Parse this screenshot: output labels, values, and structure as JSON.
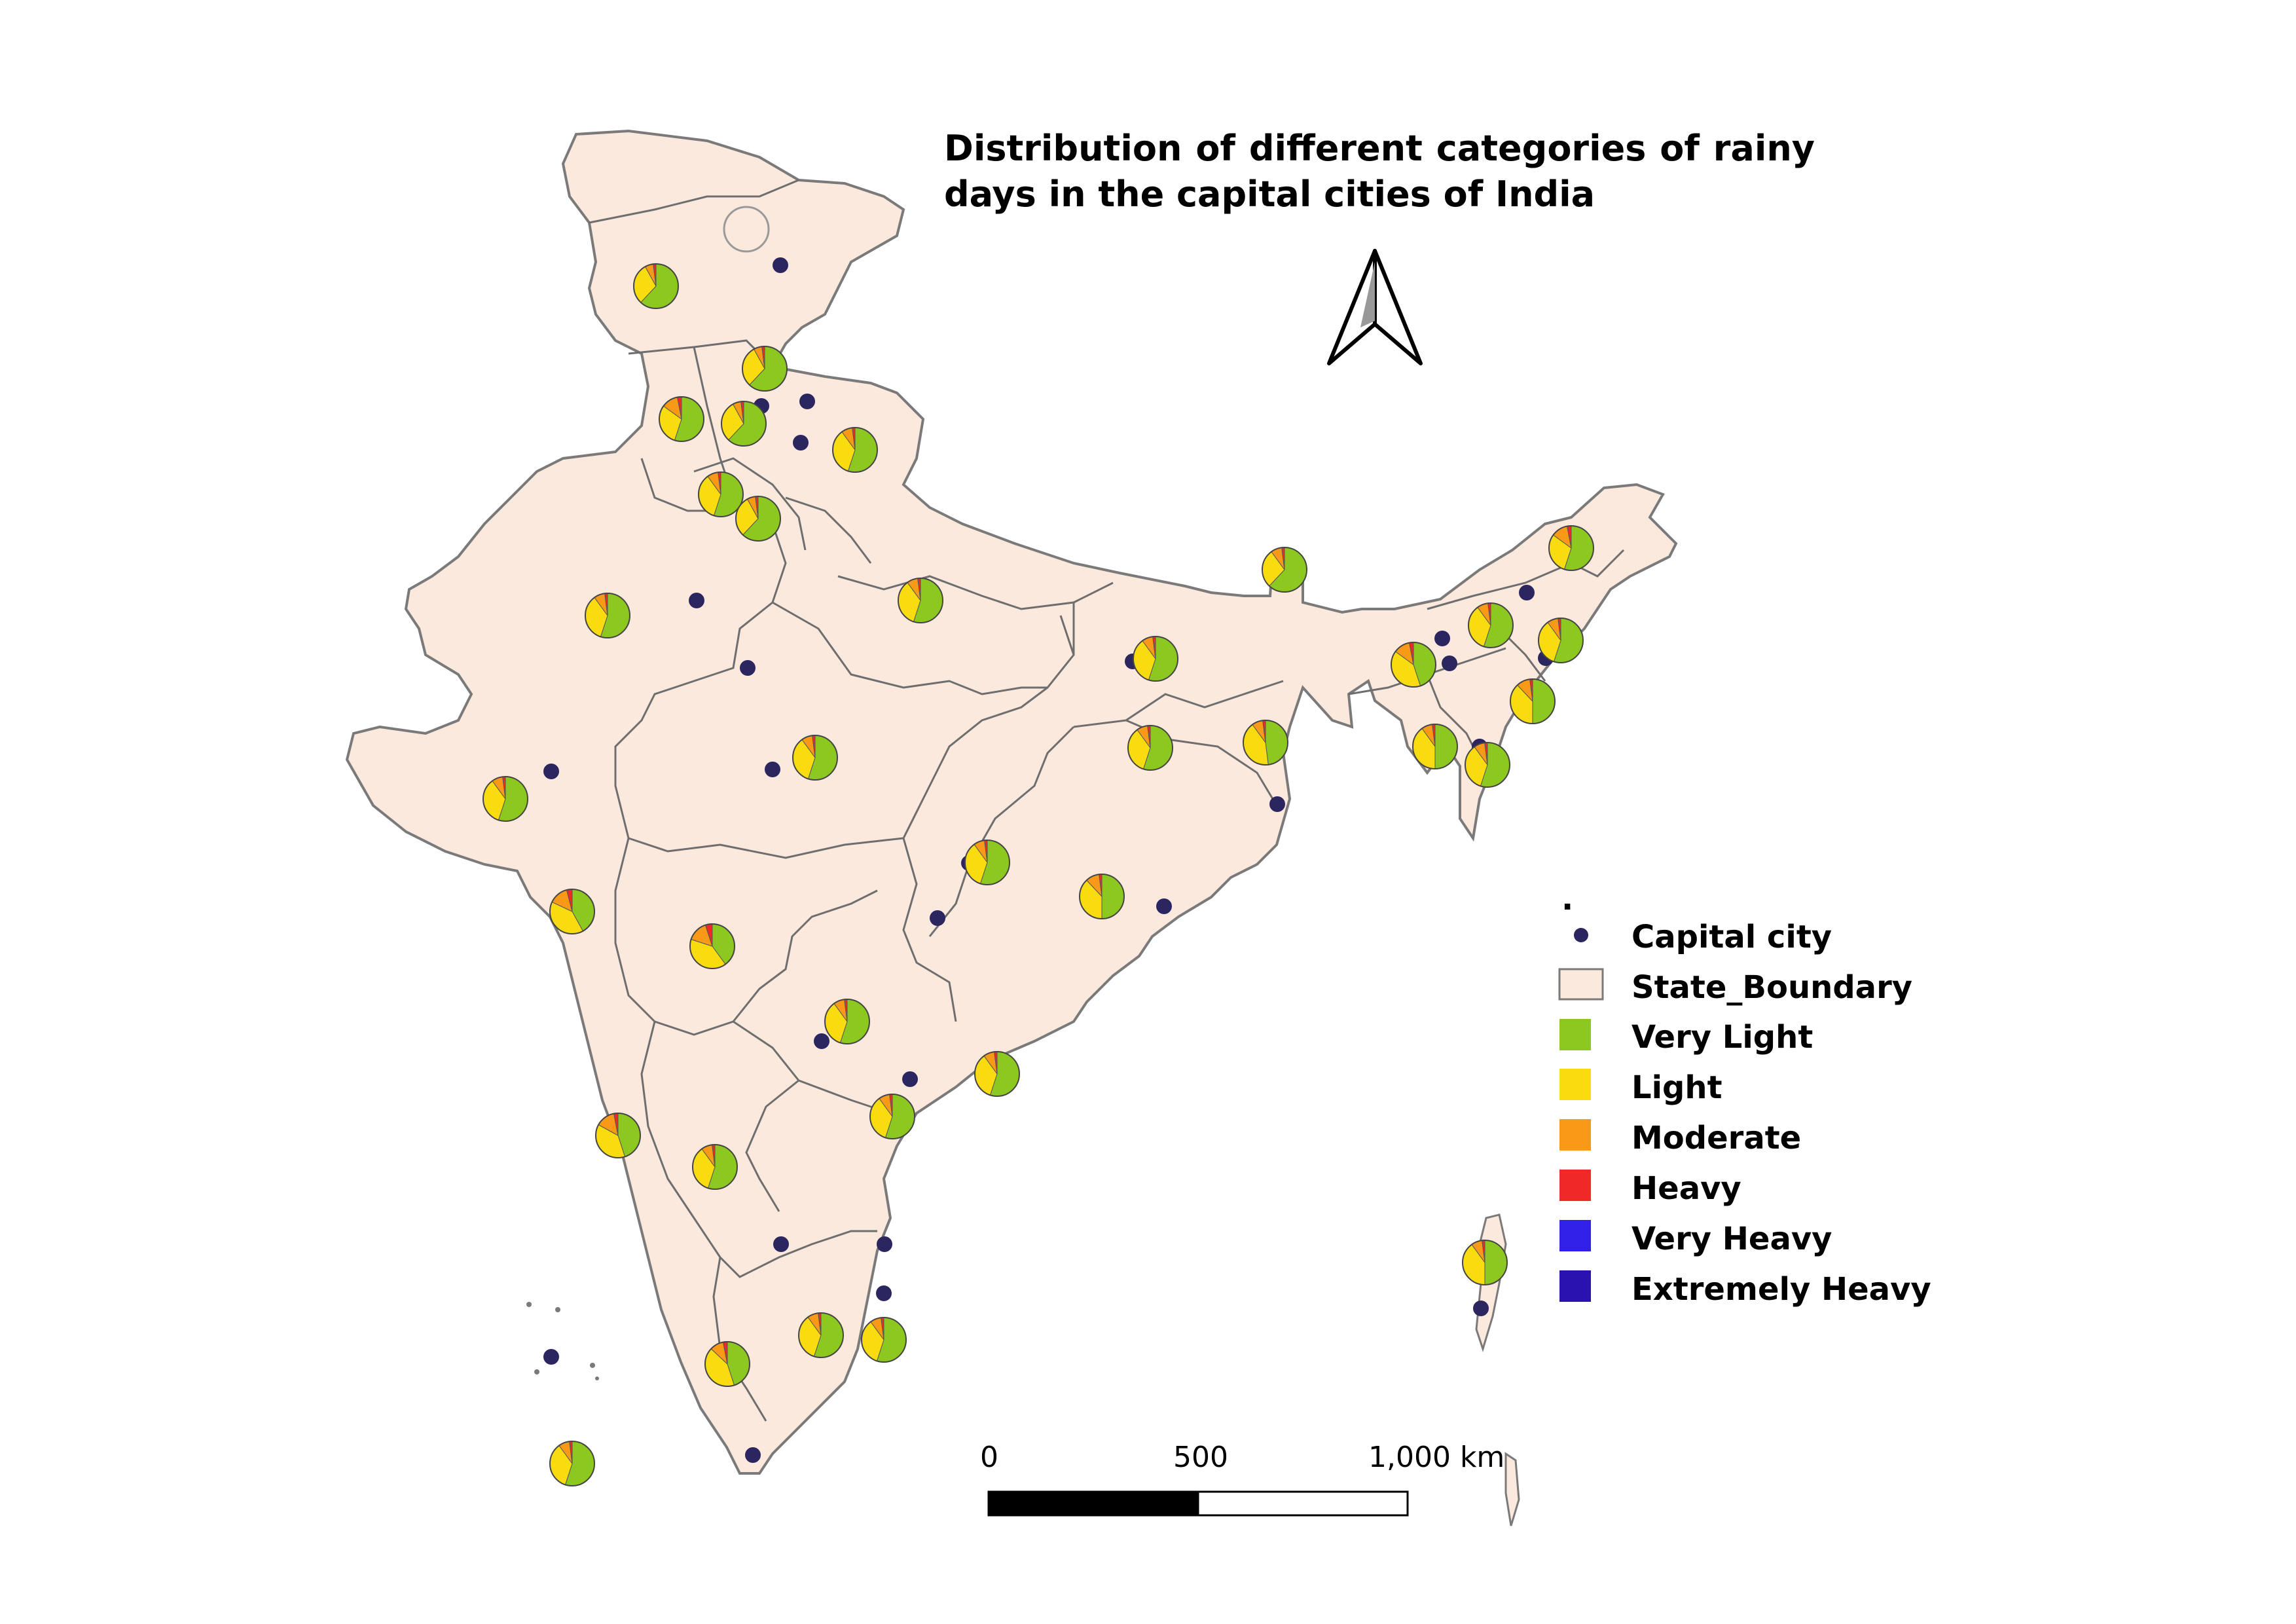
{
  "title": "Distribution of different categories of rainy days in the capital cities of India",
  "legend": {
    "heading": ".",
    "items": [
      {
        "label": "Capital city",
        "symbol": "point",
        "color": "#2b2560"
      },
      {
        "label": "State_Boundary",
        "symbol": "polygon",
        "color": "#fce9de"
      },
      {
        "label": "Very Light",
        "symbol": "square",
        "color": "#8cc820"
      },
      {
        "label": "Light",
        "symbol": "square",
        "color": "#f8dc10"
      },
      {
        "label": "Moderate",
        "symbol": "square",
        "color": "#f89a18"
      },
      {
        "label": "Heavy",
        "symbol": "square",
        "color": "#f02828"
      },
      {
        "label": "Very Heavy",
        "symbol": "square",
        "color": "#3020e8"
      },
      {
        "label": "Extremely Heavy",
        "symbol": "square",
        "color": "#2a12b0"
      }
    ]
  },
  "scale_bar": {
    "labels": [
      "0",
      "500",
      "1,000 km"
    ]
  },
  "north_arrow": "north-arrow",
  "colors": {
    "state_fill": "#fce9de",
    "state_stroke": "#7a7a7a",
    "capital": "#2b2560",
    "very_light": "#8cc820",
    "light": "#f8dc10",
    "moderate": "#f89a18",
    "heavy": "#f02828"
  }
}
